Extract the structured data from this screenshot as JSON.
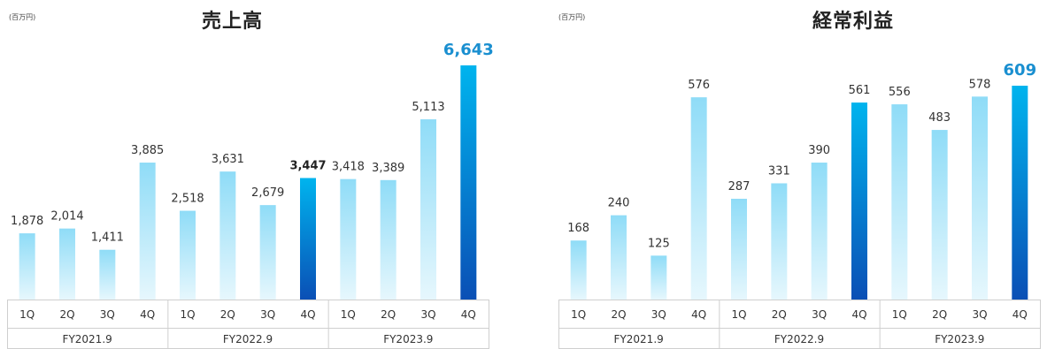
{
  "charts": [
    {
      "unit_label": "(百万円)",
      "title": "売上高",
      "colors": {
        "light_top": "#8fdcf7",
        "light_bottom": "#e6f7fd",
        "dark_top": "#00b4ee",
        "dark_bottom": "#0a4fb5",
        "highlight_label": "#1a8fd0"
      },
      "chart_data": {
        "type": "bar",
        "title": "売上高",
        "categories": [
          "1Q",
          "2Q",
          "3Q",
          "4Q",
          "1Q",
          "2Q",
          "3Q",
          "4Q",
          "1Q",
          "2Q",
          "3Q",
          "4Q"
        ],
        "groups": [
          "FY2021.9",
          "FY2022.9",
          "FY2023.9"
        ],
        "values": [
          1878,
          2014,
          1411,
          3885,
          2518,
          3631,
          2679,
          3447,
          3418,
          3389,
          5113,
          6643
        ],
        "value_labels": [
          "1,878",
          "2,014",
          "1,411",
          "3,885",
          "2,518",
          "3,631",
          "2,679",
          "3,447",
          "3,418",
          "3,389",
          "5,113",
          "6,643"
        ],
        "dark_bars": [
          7,
          11
        ],
        "bold_labels": [
          7
        ],
        "highlight_labels": [
          11
        ],
        "ylim": [
          0,
          6643
        ]
      }
    },
    {
      "unit_label": "(百万円)",
      "title": "経常利益",
      "colors": {
        "light_top": "#8fdcf7",
        "light_bottom": "#e6f7fd",
        "dark_top": "#00b4ee",
        "dark_bottom": "#0a4fb5",
        "highlight_label": "#1a8fd0"
      },
      "chart_data": {
        "type": "bar",
        "title": "経常利益",
        "categories": [
          "1Q",
          "2Q",
          "3Q",
          "4Q",
          "1Q",
          "2Q",
          "3Q",
          "4Q",
          "1Q",
          "2Q",
          "3Q",
          "4Q"
        ],
        "groups": [
          "FY2021.9",
          "FY2022.9",
          "FY2023.9"
        ],
        "values": [
          168,
          240,
          125,
          576,
          287,
          331,
          390,
          561,
          556,
          483,
          578,
          609
        ],
        "value_labels": [
          "168",
          "240",
          "125",
          "576",
          "287",
          "331",
          "390",
          "561",
          "556",
          "483",
          "578",
          "609"
        ],
        "dark_bars": [
          7,
          11
        ],
        "bold_labels": [],
        "highlight_labels": [
          11
        ],
        "ylim": [
          0,
          609
        ]
      }
    }
  ]
}
